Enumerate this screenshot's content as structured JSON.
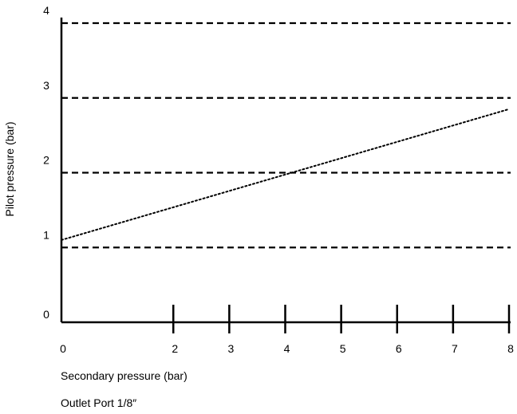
{
  "chart_data": {
    "type": "line",
    "xlabel": "Secondary pressure (bar)",
    "ylabel": "Pilot pressure (bar)",
    "caption": "Outlet Port 1/8″",
    "xlim": [
      0,
      8
    ],
    "ylim": [
      0,
      4
    ],
    "x_ticks": [
      "0",
      "2",
      "3",
      "4",
      "5",
      "6",
      "7",
      "8"
    ],
    "x_tick_values": [
      0,
      2,
      3,
      4,
      5,
      6,
      7,
      8
    ],
    "y_ticks": [
      "0",
      "1",
      "2",
      "3",
      "4"
    ],
    "y_tick_values": [
      0,
      1,
      2,
      3,
      4
    ],
    "grid": "horizontal dashed at 1, 2, 3, 4",
    "series": [
      {
        "x": [
          0,
          8
        ],
        "y": [
          1.1,
          2.85
        ],
        "style": "dotted",
        "color": "#000000"
      }
    ]
  }
}
